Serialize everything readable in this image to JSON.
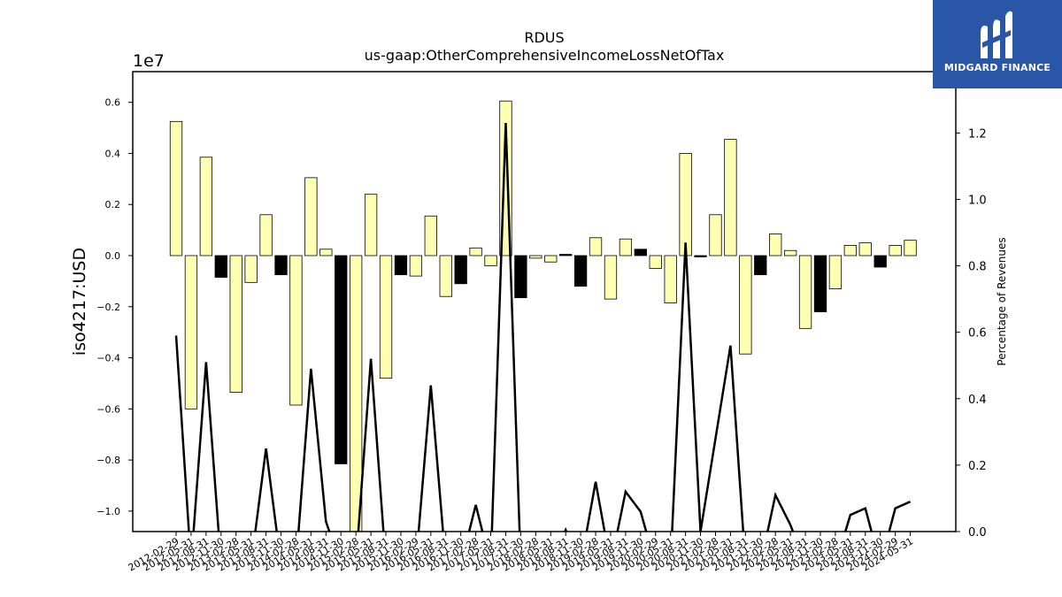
{
  "chart_data": {
    "type": "bar",
    "title": "RDUS",
    "subtitle": "us-gaap:OtherComprehensiveIncomeLossNetOfTax",
    "ylabel": "iso4217:USD",
    "y2label": "Percentage of Revenues",
    "y_offset_label": "1e7",
    "ylim": [
      -10800000,
      7200000
    ],
    "y2lim": [
      0,
      1.3846
    ],
    "y_ticks": [
      0.6,
      0.4,
      0.2,
      0.0,
      -0.2,
      -0.4,
      -0.6,
      -0.8,
      -1.0
    ],
    "y_tick_labels": [
      "0.6",
      "0.4",
      "0.2",
      "0.0",
      "−0.2",
      "−0.4",
      "−0.6",
      "−0.8",
      "−1.0"
    ],
    "y2_ticks": [
      0.0,
      0.2,
      0.4,
      0.6,
      0.8,
      1.0,
      1.2
    ],
    "y2_tick_labels": [
      "0.0",
      "0.2",
      "0.4",
      "0.6",
      "0.8",
      "1.0",
      "1.2"
    ],
    "categories": [
      "2012-02-29",
      "2012-05-31",
      "2012-08-31",
      "2012-11-30",
      "2013-02-28",
      "2013-05-31",
      "2013-08-31",
      "2013-11-30",
      "2014-02-28",
      "2014-05-31",
      "2014-08-31",
      "2014-11-30",
      "2015-02-28",
      "2015-05-31",
      "2015-08-31",
      "2015-11-30",
      "2016-02-29",
      "2016-05-31",
      "2016-08-31",
      "2016-11-30",
      "2017-02-28",
      "2017-05-31",
      "2017-08-31",
      "2017-11-30",
      "2018-02-28",
      "2018-05-31",
      "2018-08-31",
      "2018-11-30",
      "2019-02-28",
      "2019-05-31",
      "2019-08-31",
      "2019-11-30",
      "2020-02-29",
      "2020-05-31",
      "2020-08-31",
      "2020-11-30",
      "2021-02-28",
      "2021-05-31",
      "2021-08-31",
      "2021-11-30",
      "2022-02-28",
      "2022-05-31",
      "2022-08-31",
      "2022-11-30",
      "2023-02-28",
      "2023-05-31",
      "2023-08-31",
      "2023-11-30",
      "2024-02-29",
      "2024-05-31"
    ],
    "series": [
      {
        "values": [
          5250000,
          -6000000,
          3850000,
          -850000,
          -5350000,
          -1050000,
          1600000,
          -750000,
          -5850000,
          3050000,
          250000,
          -8150000,
          -11000000,
          2400000,
          -4800000,
          -750000,
          -800000,
          1550000,
          -1600000,
          -1100000,
          300000,
          -400000,
          6050000,
          -1650000,
          -100000,
          -250000,
          50000,
          -1200000,
          700000,
          -1700000,
          650000,
          250000,
          -500000,
          -1850000,
          4000000,
          -50000,
          1600000,
          4550000,
          -3850000,
          -750000,
          850000,
          200000,
          -2850000,
          -2200000,
          -1300000,
          400000,
          500000,
          -450000,
          400000,
          600000
        ]
      },
      {
        "values": [
          0.59,
          -0.1,
          0.51,
          -0.1,
          -0.1,
          -0.1,
          0.25,
          -0.1,
          -0.1,
          0.49,
          0.03,
          -0.1,
          -0.1,
          0.52,
          -0.1,
          -0.1,
          -0.1,
          0.44,
          -0.1,
          -0.1,
          0.08,
          -0.1,
          1.23,
          -0.1,
          -0.1,
          -0.1,
          0.005,
          -0.1,
          0.15,
          -0.1,
          0.12,
          0.06,
          -0.1,
          -0.1,
          0.87,
          0.0,
          0.28,
          0.56,
          -0.1,
          -0.1,
          0.11,
          0.02,
          -0.1,
          -0.1,
          -0.1,
          0.05,
          0.07,
          -0.1,
          0.07,
          0.09
        ]
      }
    ],
    "bar_fill_colors": [
      "#ffffb3",
      "#000000"
    ],
    "bar_colors_per_category": [
      "y",
      "y",
      "y",
      "k",
      "y",
      "y",
      "y",
      "k",
      "y",
      "y",
      "y",
      "k",
      "y",
      "y",
      "y",
      "k",
      "y",
      "y",
      "y",
      "k",
      "y",
      "y",
      "y",
      "k",
      "y",
      "y",
      "k",
      "k",
      "y",
      "y",
      "y",
      "k",
      "y",
      "y",
      "y",
      "k",
      "y",
      "y",
      "y",
      "k",
      "y",
      "y",
      "y",
      "k",
      "y",
      "y",
      "y",
      "k",
      "y",
      "y"
    ],
    "line_color": "#000000",
    "grid": false,
    "legend": "none"
  },
  "logo": {
    "text": "MIDGARD FINANCE",
    "background": "#2a56a8",
    "text_color": "#ffffff"
  }
}
